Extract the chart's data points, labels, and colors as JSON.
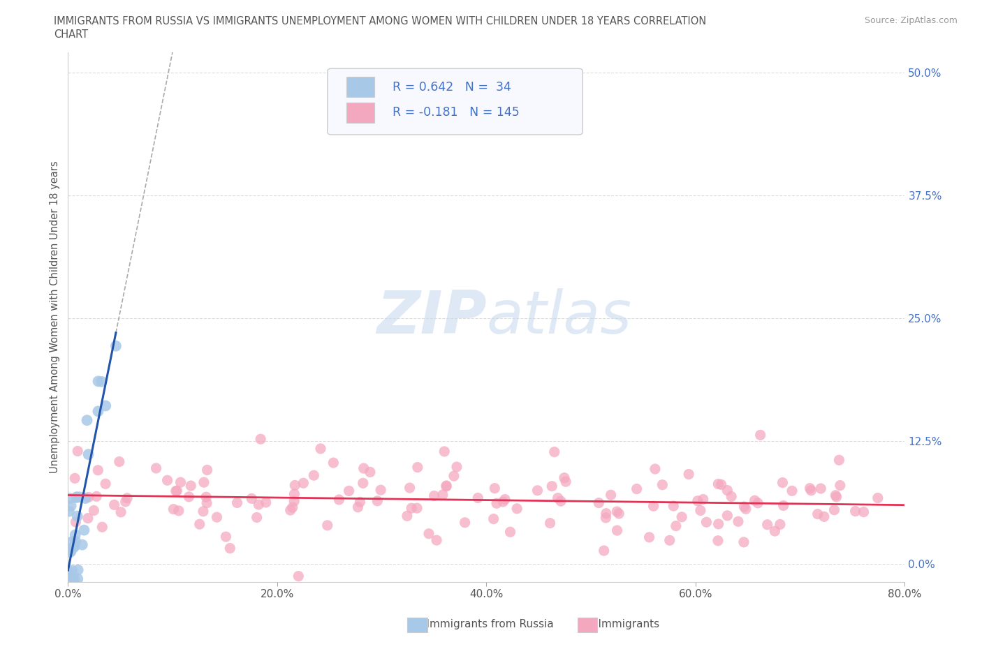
{
  "title_line1": "IMMIGRANTS FROM RUSSIA VS IMMIGRANTS UNEMPLOYMENT AMONG WOMEN WITH CHILDREN UNDER 18 YEARS CORRELATION",
  "title_line2": "CHART",
  "source": "Source: ZipAtlas.com",
  "ylabel": "Unemployment Among Women with Children Under 18 years",
  "xlim": [
    0.0,
    0.8
  ],
  "ylim": [
    -0.018,
    0.52
  ],
  "xticks": [
    0.0,
    0.2,
    0.4,
    0.6,
    0.8
  ],
  "xtick_labels": [
    "0.0%",
    "20.0%",
    "40.0%",
    "60.0%",
    "80.0%"
  ],
  "yticks_right": [
    0.0,
    0.125,
    0.25,
    0.375,
    0.5
  ],
  "ytick_labels_right": [
    "0.0%",
    "12.5%",
    "25.0%",
    "37.5%",
    "50.0%"
  ],
  "background_color": "#ffffff",
  "grid_color": "#cccccc",
  "watermark_zip": "ZIP",
  "watermark_atlas": "atlas",
  "blue_R": 0.642,
  "blue_N": 34,
  "pink_R": -0.181,
  "pink_N": 145,
  "legend_label1": "Immigrants from Russia",
  "legend_label2": "Immigrants",
  "blue_scatter_color": "#a8c8e8",
  "pink_scatter_color": "#f4a8c0",
  "blue_line_color": "#2255aa",
  "pink_line_color": "#e03355",
  "title_color": "#555555",
  "source_color": "#999999",
  "tick_color": "#555555",
  "right_tick_color": "#4472c4",
  "ylabel_color": "#555555"
}
